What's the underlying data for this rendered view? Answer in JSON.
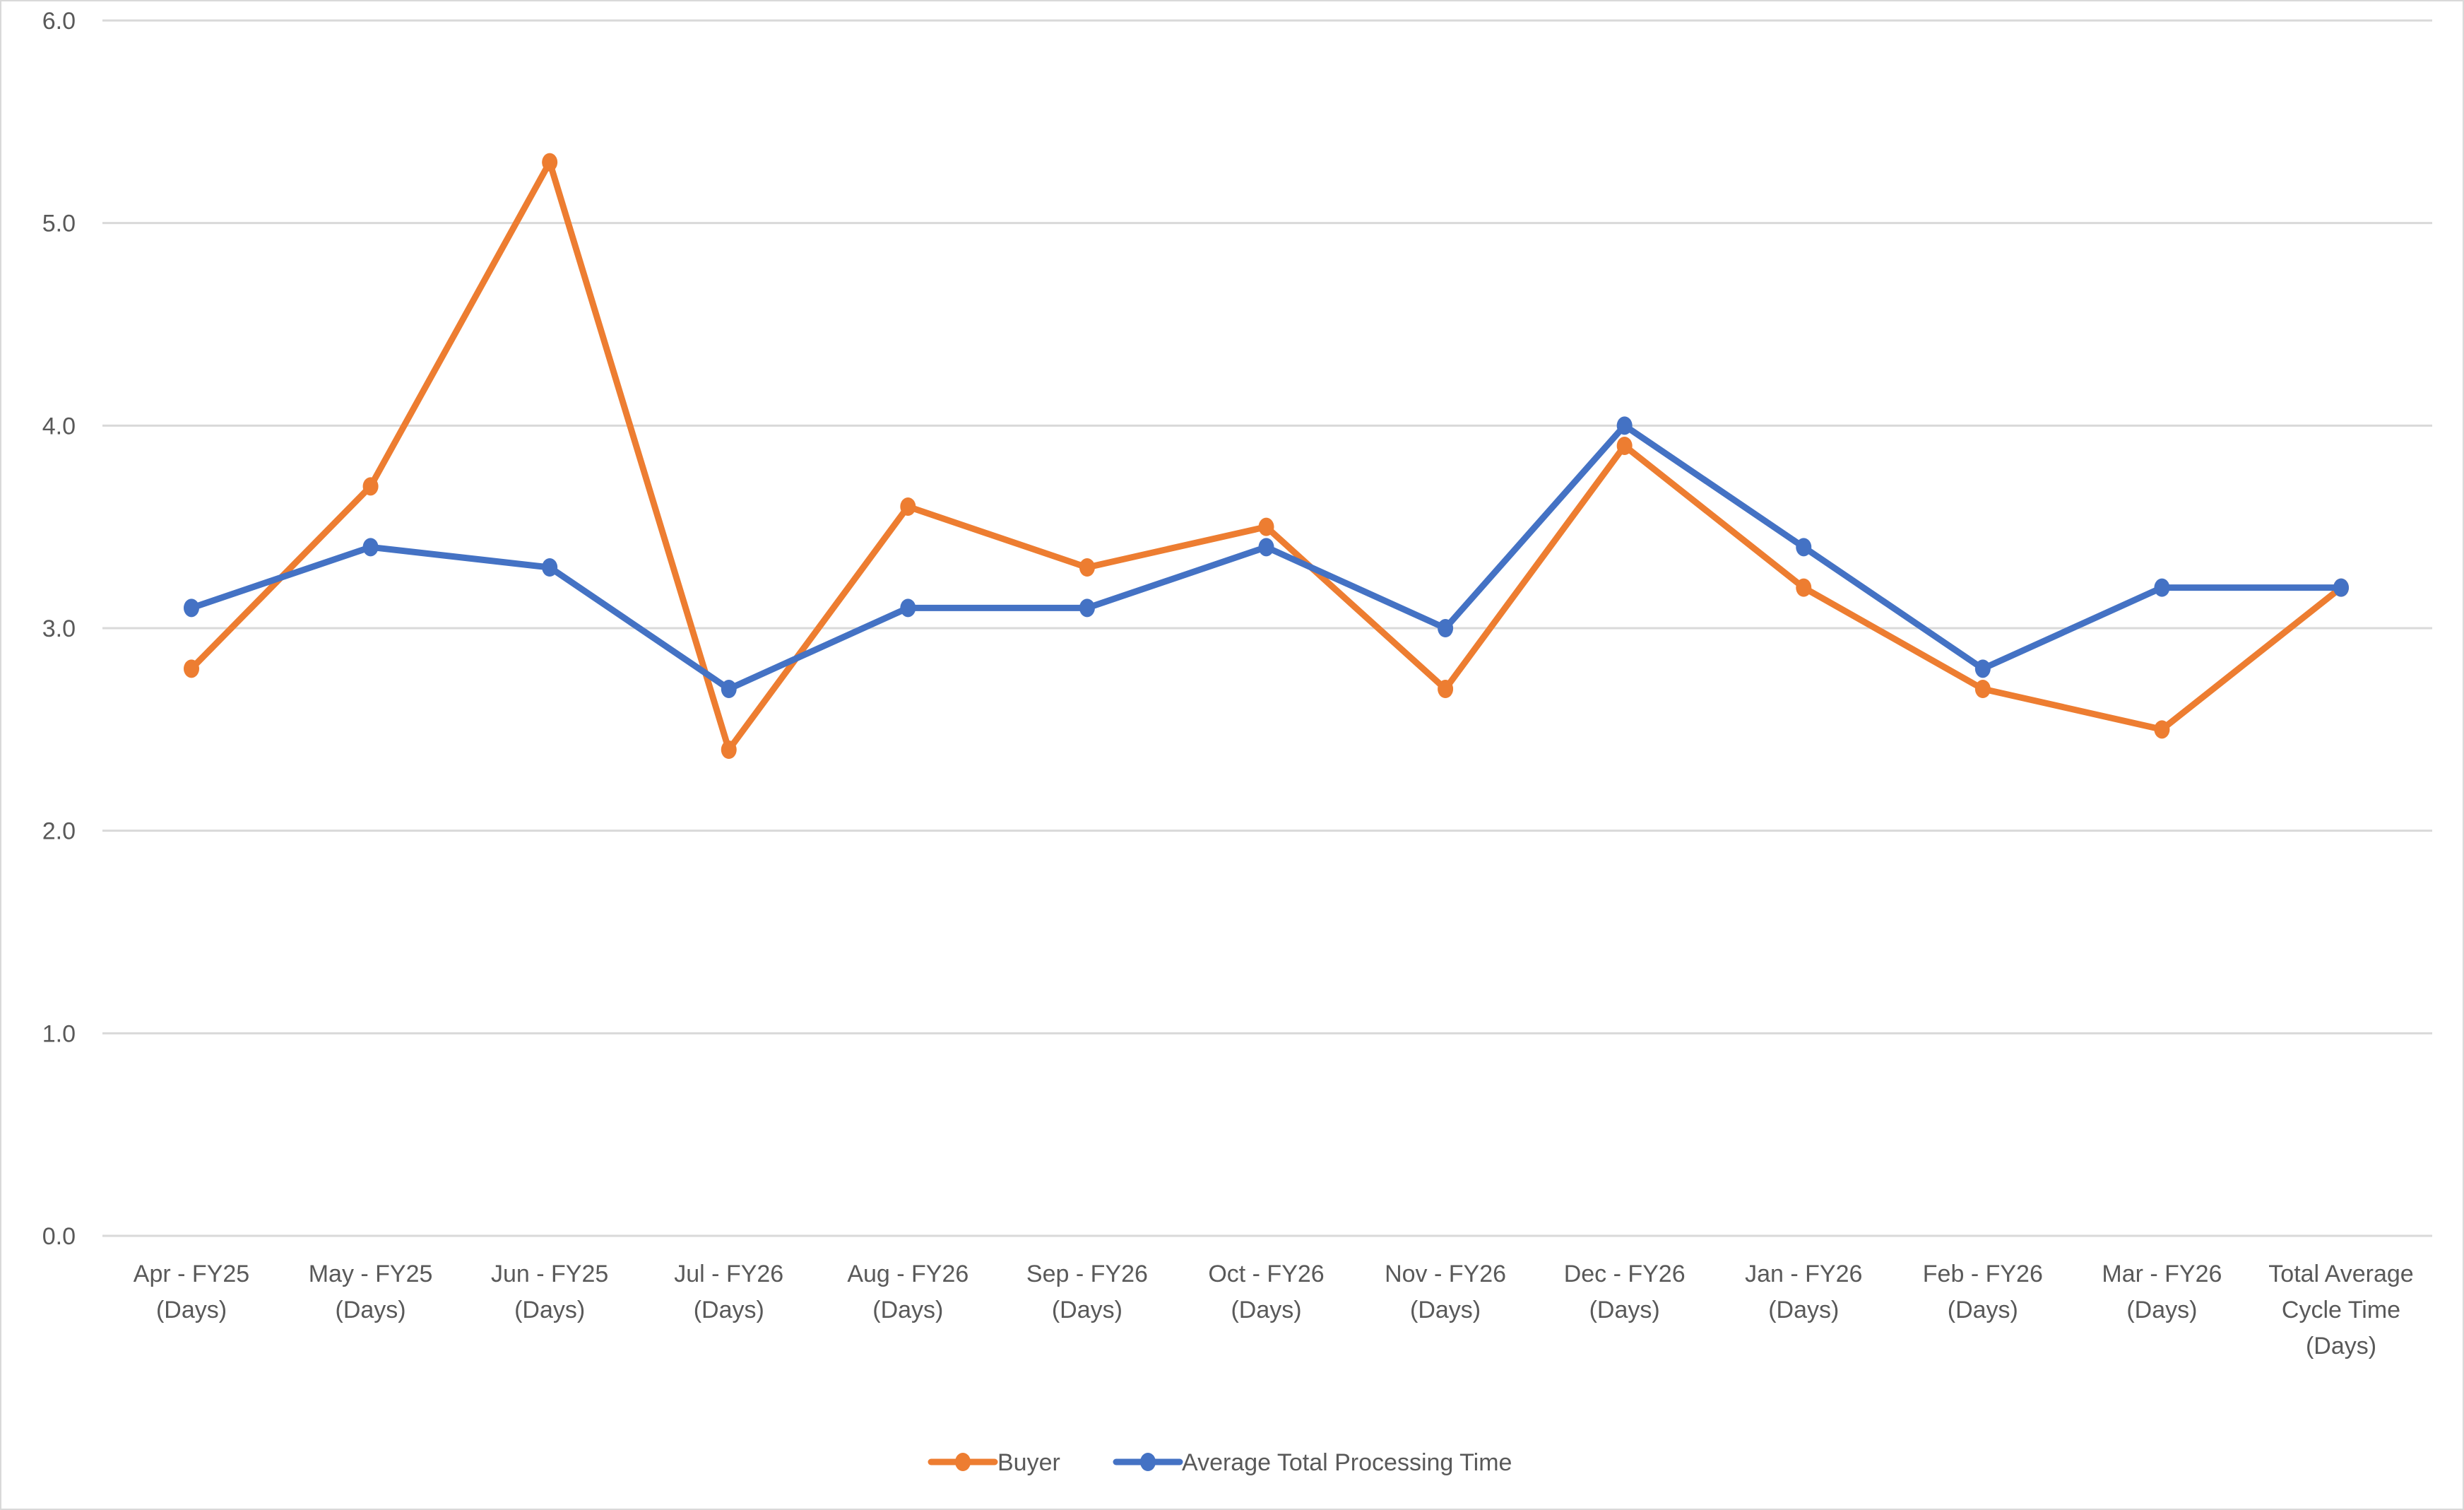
{
  "chart_data": {
    "type": "line",
    "title": "",
    "xlabel": "",
    "ylabel": "",
    "ylim": [
      0,
      6
    ],
    "yticks": [
      "0.0",
      "1.0",
      "2.0",
      "3.0",
      "4.0",
      "5.0",
      "6.0"
    ],
    "grid": true,
    "legend_position": "bottom",
    "categories": [
      "Apr - FY25 (Days)",
      "May - FY25 (Days)",
      "Jun - FY25 (Days)",
      "Jul - FY26 (Days)",
      "Aug - FY26 (Days)",
      "Sep - FY26 (Days)",
      "Oct - FY26 (Days)",
      "Nov - FY26 (Days)",
      "Dec - FY26 (Days)",
      "Jan - FY26 (Days)",
      "Feb - FY26 (Days)",
      "Mar - FY26 (Days)",
      "Total Average Cycle Time (Days)"
    ],
    "category_lines": [
      [
        "Apr - FY25",
        "(Days)"
      ],
      [
        "May - FY25",
        "(Days)"
      ],
      [
        "Jun - FY25",
        "(Days)"
      ],
      [
        "Jul - FY26",
        "(Days)"
      ],
      [
        "Aug - FY26",
        "(Days)"
      ],
      [
        "Sep - FY26",
        "(Days)"
      ],
      [
        "Oct - FY26",
        "(Days)"
      ],
      [
        "Nov - FY26",
        "(Days)"
      ],
      [
        "Dec - FY26",
        "(Days)"
      ],
      [
        "Jan - FY26",
        "(Days)"
      ],
      [
        "Feb - FY26",
        "(Days)"
      ],
      [
        "Mar - FY26",
        "(Days)"
      ],
      [
        "Total Average",
        "Cycle Time",
        "(Days)"
      ]
    ],
    "series": [
      {
        "name": "Buyer",
        "color": "#ED7D31",
        "values": [
          2.8,
          3.7,
          5.3,
          2.4,
          3.6,
          3.3,
          3.5,
          2.7,
          3.9,
          3.2,
          2.7,
          2.5,
          3.2
        ]
      },
      {
        "name": "Average Total Processing Time",
        "color": "#4472C4",
        "values": [
          3.1,
          3.4,
          3.3,
          2.7,
          3.1,
          3.1,
          3.4,
          3.0,
          4.0,
          3.4,
          2.8,
          3.2,
          3.2
        ]
      }
    ]
  },
  "colors": {
    "gridline": "#D9D9D9",
    "text": "#595959",
    "border": "#D9D9D9"
  }
}
